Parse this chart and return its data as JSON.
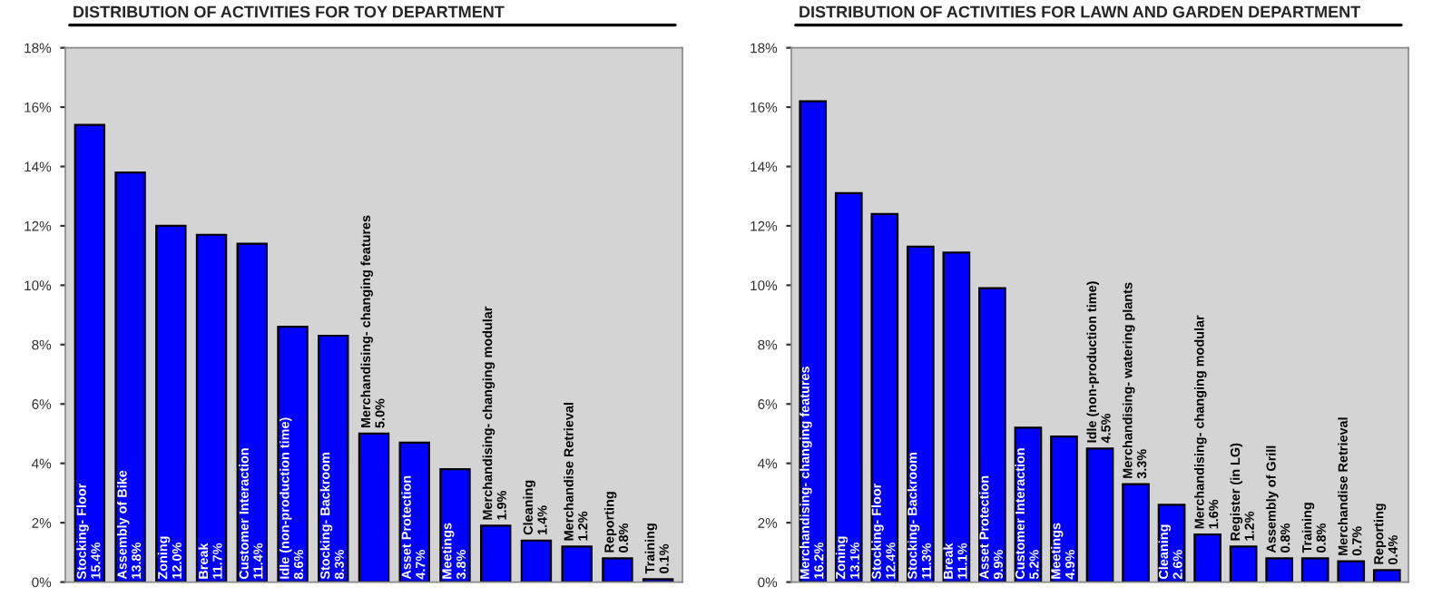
{
  "chart_data": [
    {
      "type": "bar",
      "title": "DISTRIBUTION OF ACTIVITIES FOR TOY DEPARTMENT",
      "categories": [
        "Stocking- Floor",
        "Assembly of Bike",
        "Zoning",
        "Break",
        "Customer Interaction",
        "Idle (non-production time)",
        "Stocking- Backroom",
        "Merchandising- changing features",
        "Asset Protection",
        "Meetings",
        "Merchandising- changing modular",
        "Cleaning",
        "Merchandise Retrieval",
        "Reporting",
        "Training"
      ],
      "values": [
        15.4,
        13.8,
        12.0,
        11.7,
        11.4,
        8.6,
        8.3,
        5.0,
        4.7,
        3.8,
        1.9,
        1.4,
        1.2,
        0.8,
        0.1
      ],
      "value_labels": [
        "15.4%",
        "13.8%",
        "12.0%",
        "11.7%",
        "11.4%",
        "8.6%",
        "8.3%",
        "5.0%",
        "4.7%",
        "3.8%",
        "1.9%",
        "1.4%",
        "1.2%",
        "0.8%",
        "0.1%"
      ],
      "color": "#0000ff",
      "ylim": [
        0,
        18
      ],
      "yticks": [
        {
          "value": 0,
          "label": "0%"
        },
        {
          "value": 2,
          "label": "2%"
        },
        {
          "value": 4,
          "label": "4%"
        },
        {
          "value": 6,
          "label": "6%"
        },
        {
          "value": 8,
          "label": "8%"
        },
        {
          "value": 10,
          "label": "10%"
        },
        {
          "value": 12,
          "label": "12%"
        },
        {
          "value": 14,
          "label": "14%"
        },
        {
          "value": 16,
          "label": "16%"
        },
        {
          "value": 18,
          "label": "18%"
        }
      ],
      "grid": false,
      "legend": false
    },
    {
      "type": "bar",
      "title": "DISTRIBUTION OF ACTIVITIES FOR LAWN AND GARDEN DEPARTMENT",
      "categories": [
        "Merchandising- changing features",
        "Zoning",
        "Stocking- Floor",
        "Stocking- Backroom",
        "Break",
        "Asset Protection",
        "Customer Interaction",
        "Meetings",
        "Idle (non-production time)",
        "Merchandising- watering plants",
        "Cleaning",
        "Merchandising- changing modular",
        "Register (in LG)",
        "Assembly of Grill",
        "Training",
        "Merchandise Retrieval",
        "Reporting"
      ],
      "values": [
        16.2,
        13.1,
        12.4,
        11.3,
        11.1,
        9.9,
        5.2,
        4.9,
        4.5,
        3.3,
        2.6,
        1.6,
        1.2,
        0.8,
        0.8,
        0.7,
        0.4
      ],
      "value_labels": [
        "16.2%",
        "13.1%",
        "12.4%",
        "11.3%",
        "11.1%",
        "9.9%",
        "5.2%",
        "4.9%",
        "4.5%",
        "3.3%",
        "2.6%",
        "1.6%",
        "1.2%",
        "0.8%",
        "0.8%",
        "0.7%",
        "0.4%"
      ],
      "color": "#0000ff",
      "ylim": [
        0,
        18
      ],
      "yticks": [
        {
          "value": 0,
          "label": "0%"
        },
        {
          "value": 2,
          "label": "2%"
        },
        {
          "value": 4,
          "label": "4%"
        },
        {
          "value": 6,
          "label": "6%"
        },
        {
          "value": 8,
          "label": "8%"
        },
        {
          "value": 10,
          "label": "10%"
        },
        {
          "value": 12,
          "label": "12%"
        },
        {
          "value": 14,
          "label": "14%"
        },
        {
          "value": 16,
          "label": "16%"
        },
        {
          "value": 18,
          "label": "18%"
        }
      ],
      "grid": false,
      "legend": false
    }
  ]
}
